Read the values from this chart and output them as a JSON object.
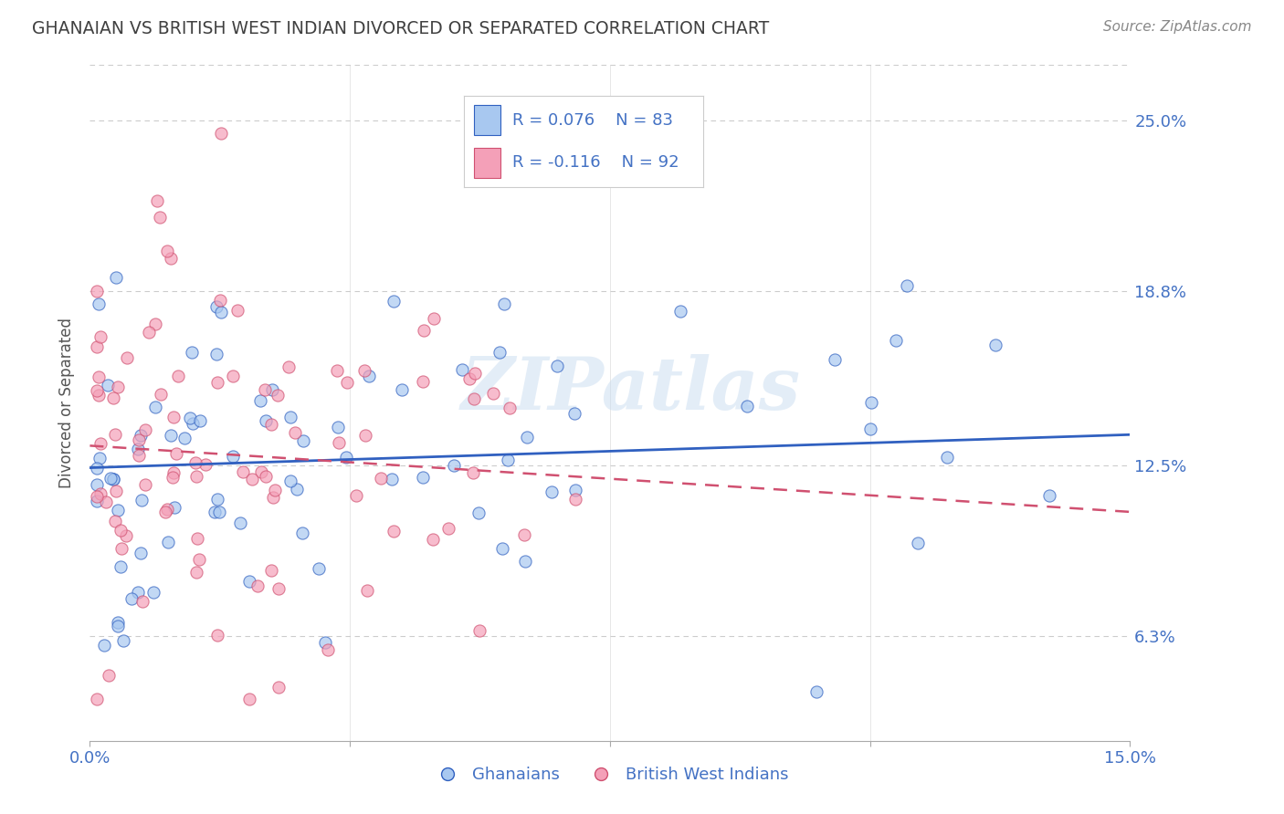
{
  "title": "GHANAIAN VS BRITISH WEST INDIAN DIVORCED OR SEPARATED CORRELATION CHART",
  "source": "Source: ZipAtlas.com",
  "ylabel": "Divorced or Separated",
  "legend_label1": "Ghanaians",
  "legend_label2": "British West Indians",
  "R1": 0.076,
  "N1": 83,
  "R2": -0.116,
  "N2": 92,
  "xlim": [
    0.0,
    0.15
  ],
  "ylim": [
    0.025,
    0.27
  ],
  "yticks": [
    0.063,
    0.125,
    0.188,
    0.25
  ],
  "ytick_labels": [
    "6.3%",
    "12.5%",
    "18.8%",
    "25.0%"
  ],
  "xtick_labels": [
    "0.0%",
    "15.0%"
  ],
  "color_blue": "#A8C8F0",
  "color_pink": "#F4A0B8",
  "line_blue": "#3060C0",
  "line_pink": "#D05070",
  "background": "#FFFFFF",
  "grid_color": "#CCCCCC",
  "title_color": "#404040",
  "tick_color": "#4472C4",
  "watermark": "ZIPatlas",
  "seed1": 42,
  "seed2": 99,
  "scatter_size": 90,
  "line1_start_y": 0.124,
  "line1_end_y": 0.136,
  "line2_start_y": 0.132,
  "line2_end_y": 0.108
}
